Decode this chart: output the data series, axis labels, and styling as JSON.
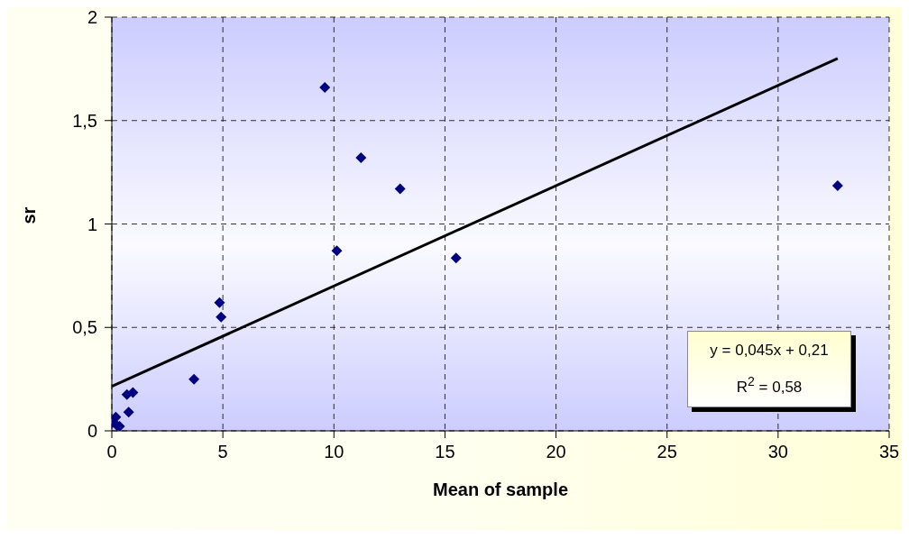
{
  "chart_data": {
    "type": "scatter",
    "xlabel": "Mean of sample",
    "ylabel": "sr",
    "series": [
      {
        "color": "#000080",
        "marker": "diamond",
        "x": [
          9.59,
          11.22,
          12.98,
          10.13,
          15.5,
          32.68,
          4.85,
          4.92,
          3.7,
          0.68,
          0.95,
          0.76,
          0.18,
          0.04,
          0.24,
          0.35
        ],
        "values": [
          1.66,
          1.32,
          1.17,
          0.87,
          0.835,
          1.185,
          0.62,
          0.55,
          0.25,
          0.175,
          0.185,
          0.09,
          0.066,
          0.04,
          0.025,
          0.022
        ]
      },
      {
        "type": "line",
        "color": "#000000",
        "x": [
          0,
          32.68
        ],
        "values": [
          0.215,
          1.8
        ]
      }
    ],
    "xlim": [
      0,
      35
    ],
    "xticks": [
      0,
      5,
      10,
      15,
      20,
      25,
      30,
      35
    ],
    "ylim": [
      0,
      2
    ],
    "yticks": [
      0,
      {
        "value": 0.5,
        "label": "0,5"
      },
      1,
      {
        "value": 1.5,
        "label": "1,5"
      },
      2
    ],
    "grid": true,
    "legend": false,
    "annotations": [
      "y = 0,045x + 0,21",
      "R$^{2}$ = 0,58"
    ]
  }
}
